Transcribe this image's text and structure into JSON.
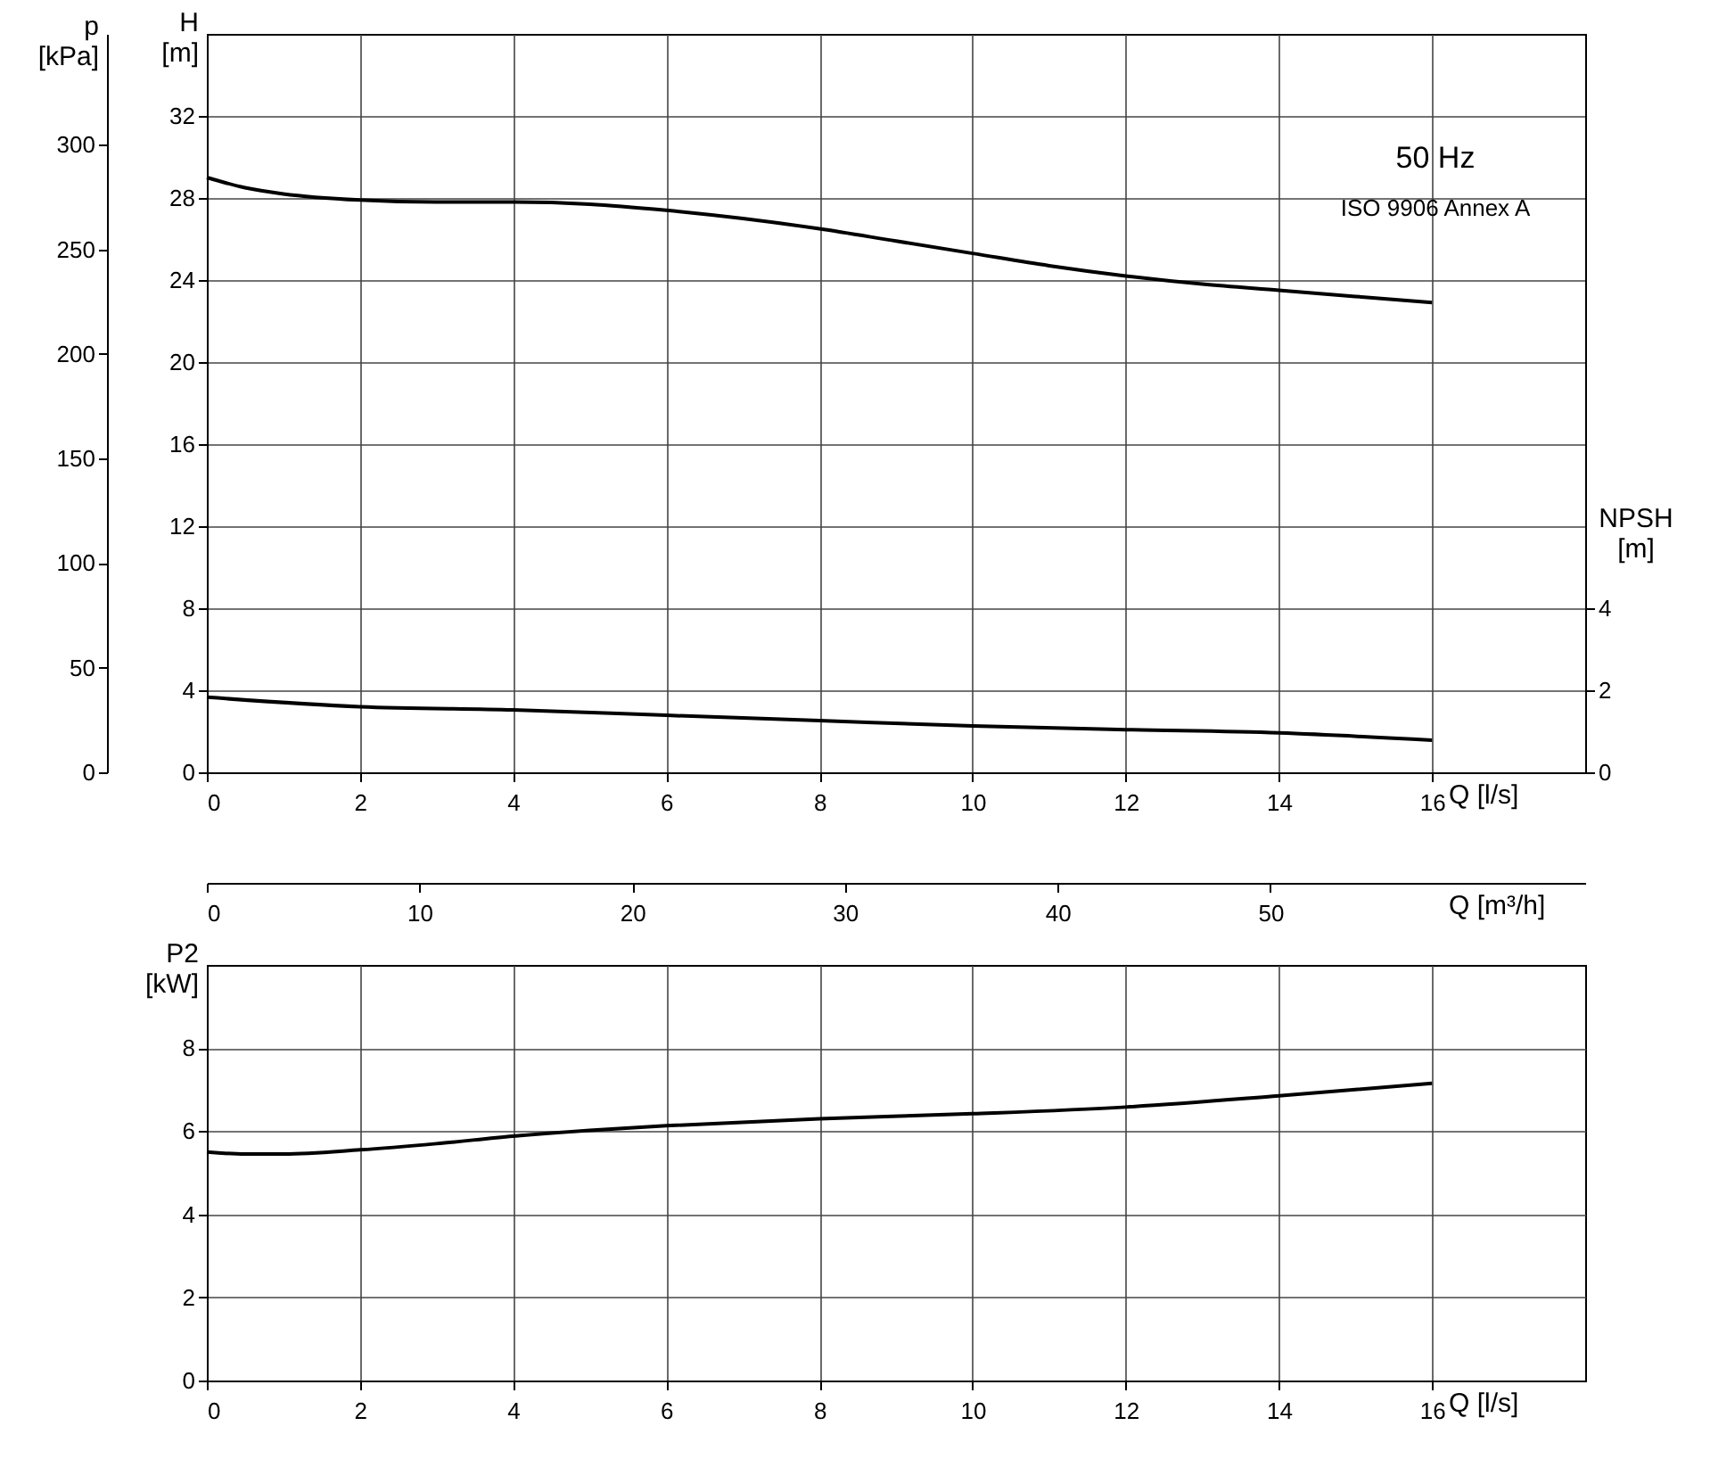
{
  "chart_data": [
    {
      "type": "line",
      "xlabel": "Q [l/s]",
      "x2label": "Q [m³/h]",
      "ylabel": "H [m]",
      "y2label": "NPSH [m]",
      "y3label": "p [kPa]",
      "xlim": [
        0,
        18
      ],
      "xticks": [
        0,
        2,
        4,
        6,
        8,
        10,
        12,
        14,
        16
      ],
      "x2lim": [
        0,
        64.8
      ],
      "x2ticks": [
        0,
        10,
        20,
        30,
        40,
        50
      ],
      "ylim": [
        0,
        36
      ],
      "yticks": [
        0,
        4,
        8,
        12,
        16,
        20,
        24,
        28,
        32
      ],
      "y2lim": [
        0,
        18
      ],
      "y2ticks": [
        0,
        2,
        4
      ],
      "y3lim": [
        0,
        353
      ],
      "y3ticks": [
        0,
        50,
        100,
        150,
        200,
        250,
        300
      ],
      "grid": true,
      "annotations": [
        "50 Hz",
        "ISO 9906 Annex A"
      ],
      "series": [
        {
          "color": "#000000",
          "axis": "y",
          "x": [
            0,
            0.5,
            1,
            2,
            3,
            4,
            5,
            6,
            7,
            8,
            9,
            10,
            11,
            12,
            13,
            14,
            15,
            16
          ],
          "values": [
            29.0,
            28.5,
            28.2,
            27.9,
            27.8,
            27.8,
            27.7,
            27.4,
            27.0,
            26.5,
            25.9,
            25.3,
            24.7,
            24.2,
            23.8,
            23.5,
            23.2,
            22.9
          ]
        },
        {
          "color": "#000000",
          "axis": "y2",
          "x": [
            0,
            2,
            4,
            6,
            8,
            10,
            12,
            14,
            16
          ],
          "values": [
            1.83,
            1.6,
            1.52,
            1.39,
            1.26,
            1.13,
            1.04,
            0.96,
            0.78
          ]
        }
      ]
    },
    {
      "type": "line",
      "xlabel": "Q [l/s]",
      "ylabel": "P2 [kW]",
      "xlim": [
        0,
        18
      ],
      "xticks": [
        0,
        2,
        4,
        6,
        8,
        10,
        12,
        14,
        16
      ],
      "ylim": [
        0,
        10
      ],
      "yticks": [
        0,
        2,
        4,
        6,
        8
      ],
      "grid": true,
      "series": [
        {
          "color": "#000000",
          "x": [
            0,
            0.5,
            1,
            2,
            3,
            4,
            5,
            6,
            8,
            10,
            12,
            14,
            16
          ],
          "values": [
            5.5,
            5.45,
            5.45,
            5.55,
            5.7,
            5.88,
            6.02,
            6.13,
            6.3,
            6.42,
            6.58,
            6.85,
            7.15
          ]
        }
      ]
    }
  ]
}
